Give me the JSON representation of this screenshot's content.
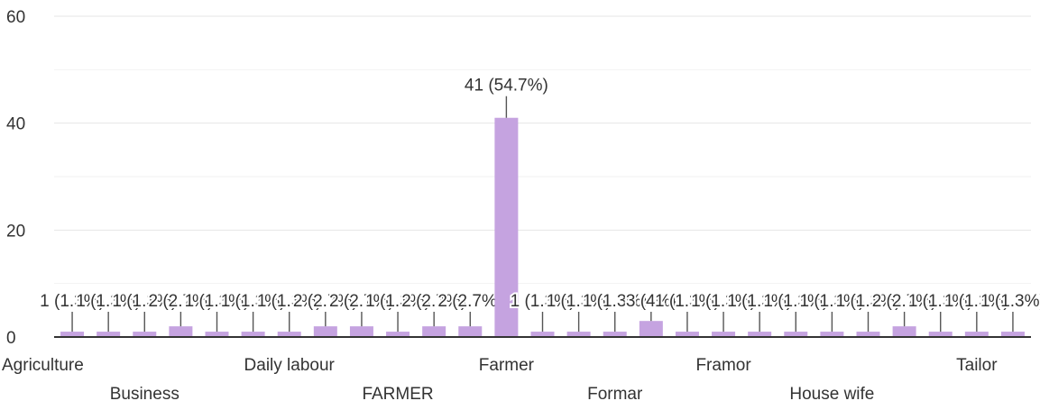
{
  "chart_data": {
    "type": "bar",
    "title": "",
    "xlabel": "",
    "ylabel": "",
    "ylim": [
      0,
      60
    ],
    "yticks": [
      0,
      20,
      40,
      60
    ],
    "grid": true,
    "legend": "none",
    "bar_color": "#c5a3e0",
    "label_color": "#333333",
    "categories": [
      "Agriculture",
      "",
      "Business",
      "",
      "",
      "",
      "Daily labour",
      "",
      "",
      "FARMER",
      "",
      "",
      "Farmer",
      "",
      "",
      "Formar",
      "",
      "",
      "Framor",
      "",
      "",
      "House wife",
      "",
      "",
      "",
      "Tailor",
      ""
    ],
    "visible_x_labels": [
      "Agriculture",
      "Business",
      "Daily labour",
      "FARMER",
      "Farmer",
      "Formar",
      "Framor",
      "House wife",
      "Tailor"
    ],
    "values": [
      1,
      1,
      1,
      2,
      1,
      1,
      1,
      2,
      2,
      1,
      2,
      2,
      41,
      1,
      1,
      1,
      3,
      1,
      1,
      1,
      1,
      1,
      1,
      2,
      1,
      1,
      1
    ],
    "data_labels": [
      "1 (1.3%)",
      "1 (1.3%)",
      "1 (1.3%)",
      "2 (2.7%)",
      "1 (1.3%)",
      "1 (1.3%)",
      "1 (1.3%)",
      "2 (2.7%)",
      "2 (2.7%)",
      "1 (1.3%)",
      "2 (2.7%)",
      "2 (2.7%)",
      "41 (54.7%)",
      "1 (1.3%)",
      "1 (1.3%)",
      "1 (1.3%)",
      "3 (4%)",
      "1 (1.3%)",
      "1 (1.3%)",
      "1 (1.3%)",
      "1 (1.3%)",
      "1 (1.3%)",
      "1 (1.3%)",
      "2 (2.7%)",
      "1 (1.3%)",
      "1 (1.3%)",
      "1 (1.3%)"
    ]
  }
}
